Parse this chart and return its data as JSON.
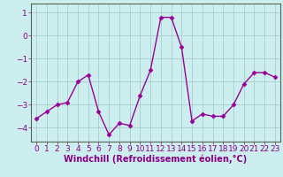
{
  "x": [
    0,
    1,
    2,
    3,
    4,
    5,
    6,
    7,
    8,
    9,
    10,
    11,
    12,
    13,
    14,
    15,
    16,
    17,
    18,
    19,
    20,
    21,
    22,
    23
  ],
  "y": [
    -3.6,
    -3.3,
    -3.0,
    -2.9,
    -2.0,
    -1.7,
    -3.3,
    -4.3,
    -3.8,
    -3.9,
    -2.6,
    -1.5,
    0.8,
    0.8,
    -0.5,
    -3.7,
    -3.4,
    -3.5,
    -3.5,
    -3.0,
    -2.1,
    -1.6,
    -1.6,
    -1.8
  ],
  "line_color": "#990099",
  "marker": "D",
  "markersize": 2.5,
  "bg_color": "#cceeee",
  "grid_color": "#aacccc",
  "xlabel": "Windchill (Refroidissement éolien,°C)",
  "ylabel": "",
  "xlim": [
    -0.5,
    23.5
  ],
  "ylim": [
    -4.6,
    1.4
  ],
  "yticks": [
    -4,
    -3,
    -2,
    -1,
    0,
    1
  ],
  "xticks": [
    0,
    1,
    2,
    3,
    4,
    5,
    6,
    7,
    8,
    9,
    10,
    11,
    12,
    13,
    14,
    15,
    16,
    17,
    18,
    19,
    20,
    21,
    22,
    23
  ],
  "tick_fontsize": 6.5,
  "label_fontsize": 7.0,
  "linewidth": 1.0,
  "tick_color": "#880088",
  "label_color": "#880088"
}
